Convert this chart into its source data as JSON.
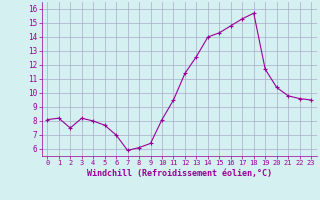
{
  "x": [
    0,
    1,
    2,
    3,
    4,
    5,
    6,
    7,
    8,
    9,
    10,
    11,
    12,
    13,
    14,
    15,
    16,
    17,
    18,
    19,
    20,
    21,
    22,
    23
  ],
  "y": [
    8.1,
    8.2,
    7.5,
    8.2,
    8.0,
    7.7,
    7.0,
    5.9,
    6.1,
    6.4,
    8.1,
    9.5,
    11.4,
    12.6,
    14.0,
    14.3,
    14.8,
    15.3,
    15.7,
    11.7,
    10.4,
    9.8,
    9.6,
    9.5
  ],
  "line_color": "#990099",
  "marker": "+",
  "marker_size": 3,
  "bg_color": "#d4f0f0",
  "grid_color": "#aaaacc",
  "xlabel": "Windchill (Refroidissement éolien,°C)",
  "xlabel_color": "#990099",
  "tick_color": "#990099",
  "ylim": [
    5.5,
    16.5
  ],
  "xlim": [
    -0.5,
    23.5
  ],
  "yticks": [
    6,
    7,
    8,
    9,
    10,
    11,
    12,
    13,
    14,
    15,
    16
  ],
  "xticks": [
    0,
    1,
    2,
    3,
    4,
    5,
    6,
    7,
    8,
    9,
    10,
    11,
    12,
    13,
    14,
    15,
    16,
    17,
    18,
    19,
    20,
    21,
    22,
    23
  ],
  "xtick_labels": [
    "0",
    "1",
    "2",
    "3",
    "4",
    "5",
    "6",
    "7",
    "8",
    "9",
    "10",
    "11",
    "12",
    "13",
    "14",
    "15",
    "16",
    "17",
    "18",
    "19",
    "20",
    "21",
    "22",
    "23"
  ]
}
